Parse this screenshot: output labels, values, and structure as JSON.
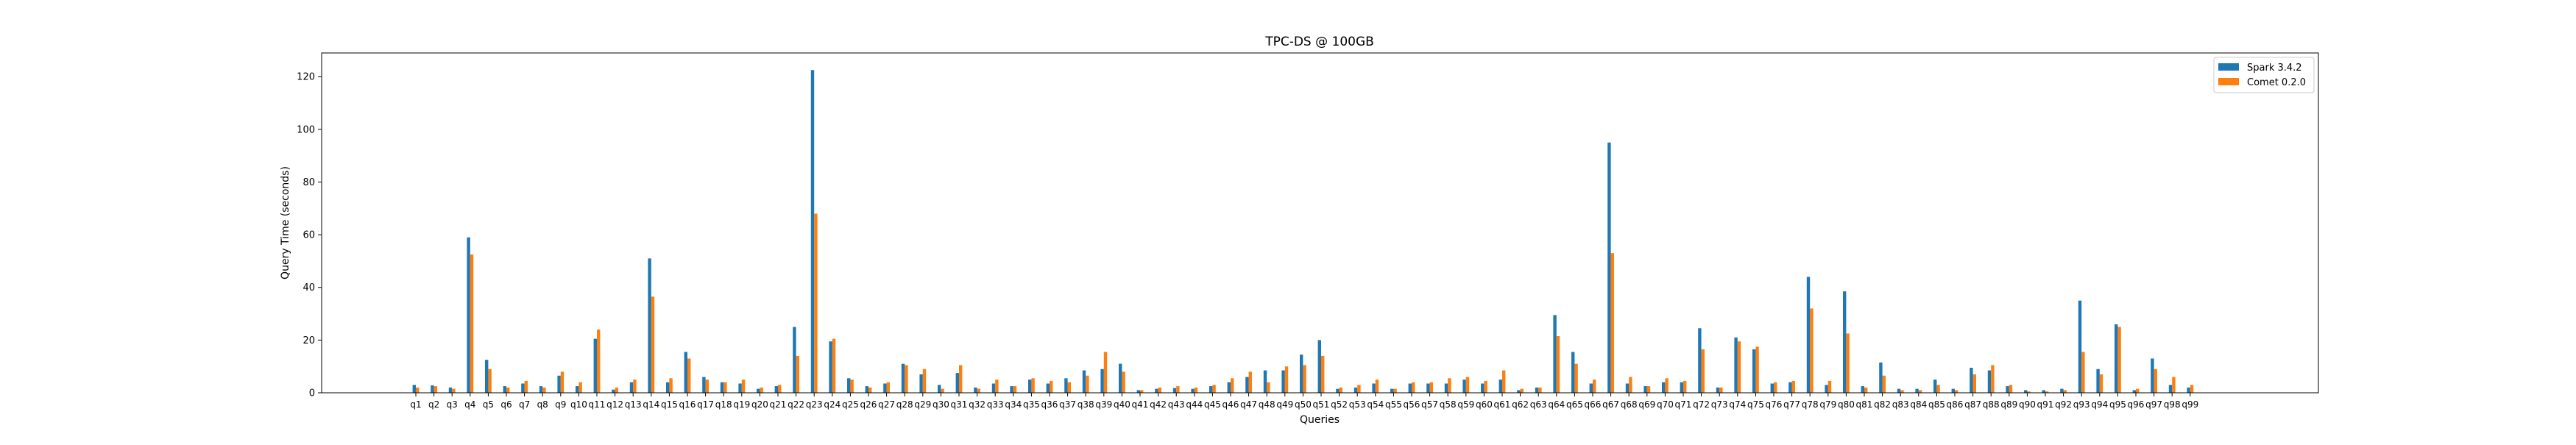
{
  "chart_data": {
    "type": "bar",
    "title": "TPC-DS @ 100GB",
    "xlabel": "Queries",
    "ylabel": "Query Time (seconds)",
    "ylim": [
      0,
      129
    ],
    "yticks": [
      0,
      20,
      40,
      60,
      80,
      100,
      120
    ],
    "grid": false,
    "legend_position": "top-right",
    "categories": [
      "q1",
      "q2",
      "q3",
      "q4",
      "q5",
      "q6",
      "q7",
      "q8",
      "q9",
      "q10",
      "q11",
      "q12",
      "q13",
      "q14",
      "q15",
      "q16",
      "q17",
      "q18",
      "q19",
      "q20",
      "q21",
      "q22",
      "q23",
      "q24",
      "q25",
      "q26",
      "q27",
      "q28",
      "q29",
      "q30",
      "q31",
      "q32",
      "q33",
      "q34",
      "q35",
      "q36",
      "q37",
      "q38",
      "q39",
      "q40",
      "q41",
      "q42",
      "q43",
      "q44",
      "q45",
      "q46",
      "q47",
      "q48",
      "q49",
      "q50",
      "q51",
      "q52",
      "q53",
      "q54",
      "q55",
      "q56",
      "q57",
      "q58",
      "q59",
      "q60",
      "q61",
      "q62",
      "q63",
      "q64",
      "q65",
      "q66",
      "q67",
      "q68",
      "q69",
      "q70",
      "q71",
      "q72",
      "q73",
      "q74",
      "q75",
      "q76",
      "q77",
      "q78",
      "q79",
      "q80",
      "q81",
      "q82",
      "q83",
      "q84",
      "q85",
      "q86",
      "q87",
      "q88",
      "q89",
      "q90",
      "q91",
      "q92",
      "q93",
      "q94",
      "q95",
      "q96",
      "q97",
      "q98",
      "q99"
    ],
    "series": [
      {
        "name": "Spark 3.4.2",
        "color": "#1f77b4",
        "values": [
          3,
          2.8,
          2,
          59,
          12.5,
          2.5,
          3.5,
          2.5,
          6.5,
          2.5,
          20.5,
          1.2,
          4,
          51,
          4,
          15.5,
          6,
          4,
          3.5,
          1.5,
          2.5,
          25,
          122.5,
          19.5,
          5.5,
          2.5,
          3.5,
          11,
          7,
          3,
          7.5,
          2,
          3.5,
          2.5,
          5,
          3.5,
          5.5,
          8.5,
          9,
          11,
          1,
          1.5,
          1.8,
          1.5,
          2.5,
          4,
          6,
          8.5,
          8.5,
          14.5,
          20,
          1.5,
          2,
          3.5,
          1.5,
          3.5,
          3.5,
          3.5,
          5,
          3.5,
          5,
          1,
          2,
          29.5,
          15.5,
          3.5,
          95,
          3.5,
          2.5,
          4,
          4,
          24.5,
          2,
          21,
          16.5,
          3.5,
          4,
          44,
          3,
          38.5,
          2.5,
          11.5,
          1.5,
          1.5,
          5,
          1.5,
          9.5,
          8.5,
          2.5,
          1,
          1,
          1.5,
          35,
          9,
          26,
          1,
          13,
          3,
          2
        ]
      },
      {
        "name": "Comet 0.2.0",
        "color": "#ff7f0e",
        "values": [
          2,
          2.5,
          1.5,
          52.5,
          9,
          2,
          4.5,
          2,
          8,
          4,
          24,
          2,
          5,
          36.5,
          5.5,
          13,
          5,
          4,
          5,
          2,
          3,
          14,
          68,
          20.5,
          5,
          2,
          4,
          10.5,
          9,
          1.5,
          10.5,
          1.5,
          5,
          2.5,
          5.5,
          4.5,
          4,
          6.5,
          15.5,
          8,
          1,
          2,
          2.5,
          2,
          3,
          5.5,
          8,
          4,
          10,
          10.5,
          14,
          2,
          3,
          5,
          1.5,
          4,
          4,
          5.5,
          6,
          4.5,
          8.5,
          1.5,
          2,
          21.5,
          11,
          5,
          53,
          6,
          2.5,
          5.5,
          4.5,
          16.5,
          2,
          19.5,
          17.5,
          4,
          4.5,
          32,
          4.5,
          22.5,
          2,
          6.5,
          1,
          1,
          3,
          1,
          7,
          10.5,
          3,
          0.5,
          0.5,
          1,
          15.5,
          7,
          25,
          1.5,
          9,
          6,
          3
        ]
      }
    ]
  }
}
